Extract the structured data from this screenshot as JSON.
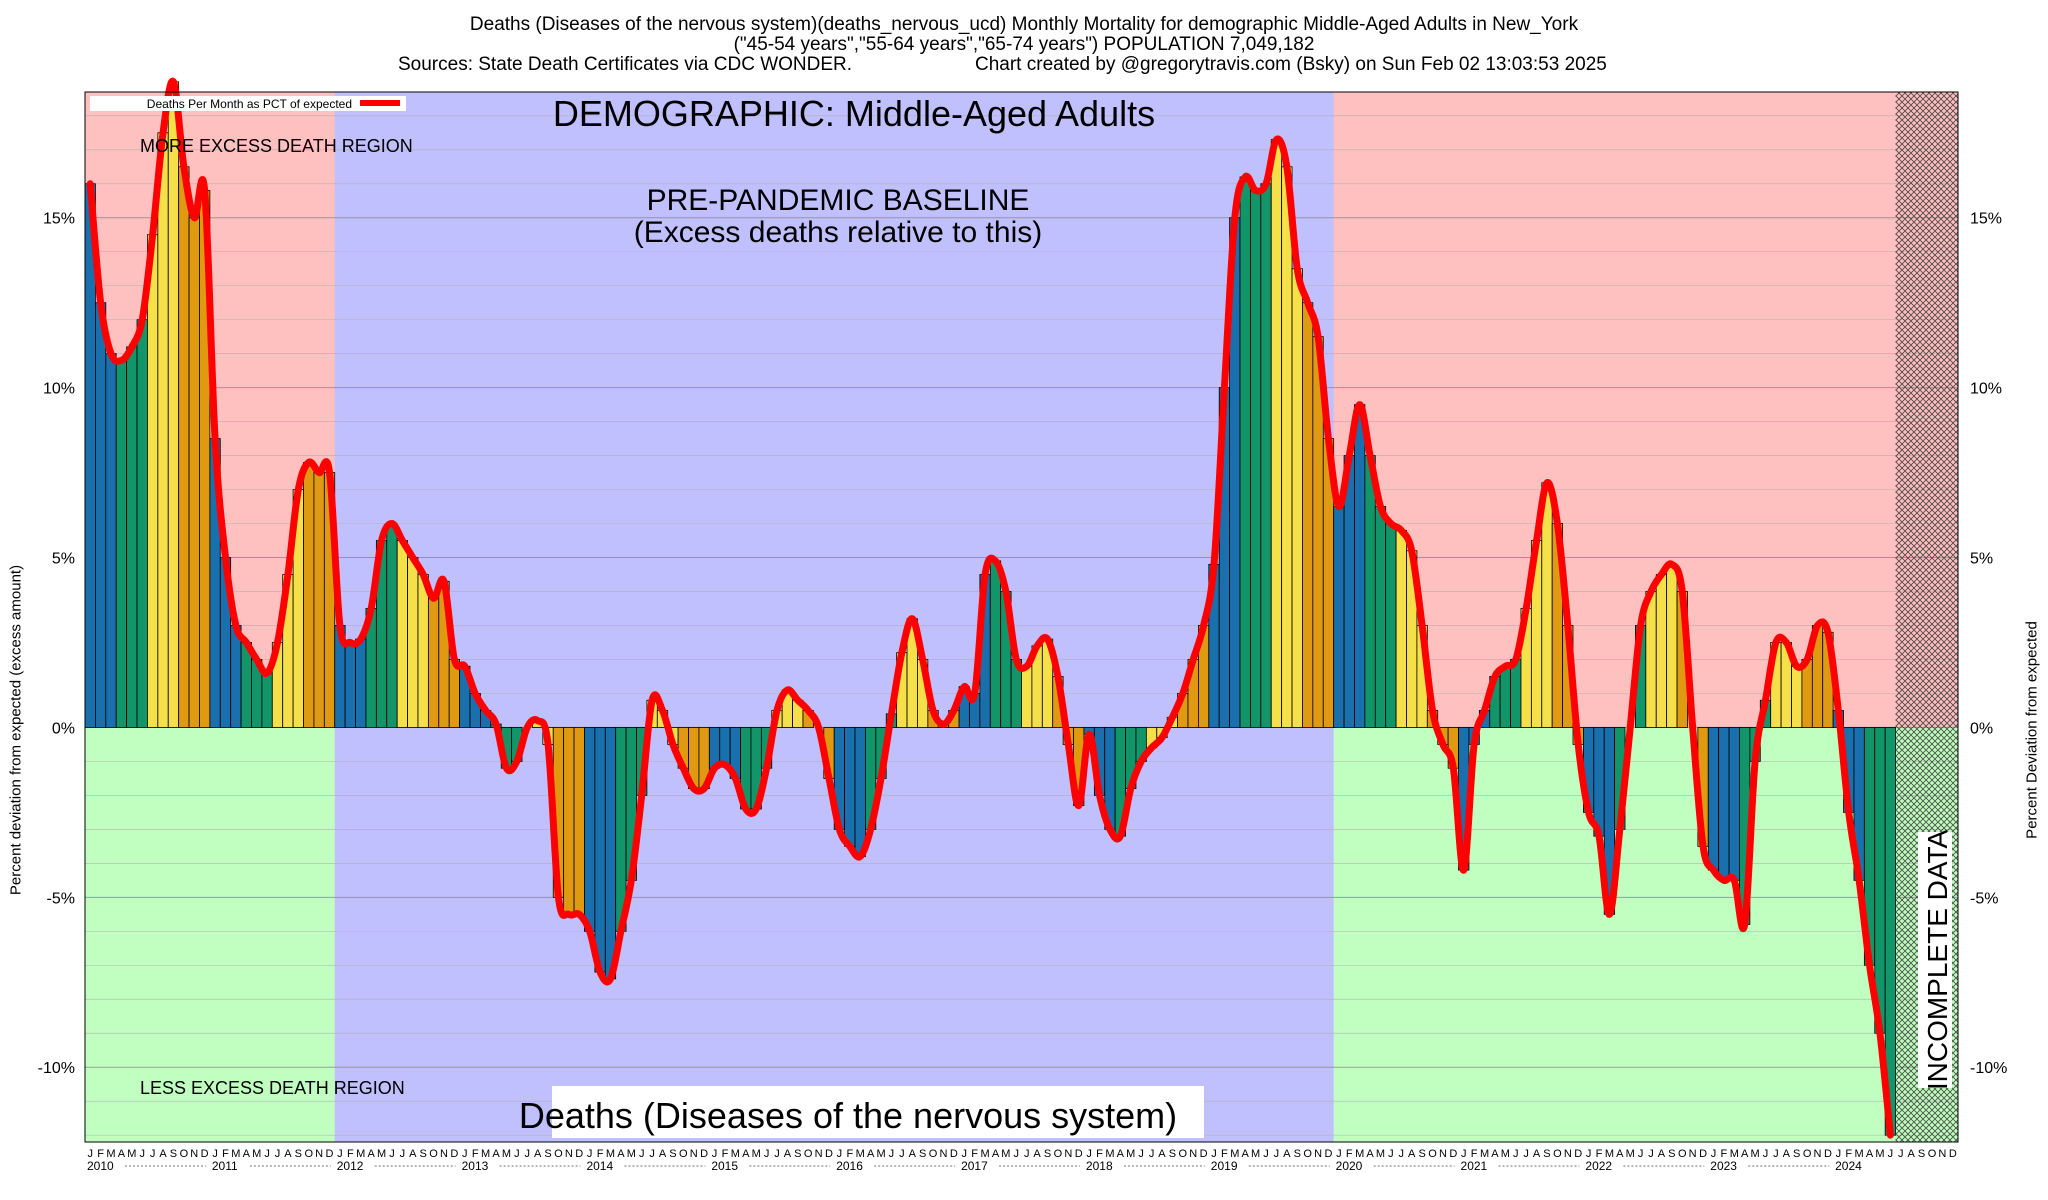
{
  "header": {
    "line1": "Deaths (Diseases of the nervous system)(deaths_nervous_ucd) Monthly Mortality for demographic Middle-Aged Adults in New_York",
    "line2": "(\"45-54 years\",\"55-64 years\",\"65-74 years\") POPULATION 7,049,182",
    "sources": "Sources: State Death Certificates via CDC WONDER.",
    "created": "Chart created by @gregorytravis.com (Bsky) on Sun Feb 02 13:03:53 2025"
  },
  "colors": {
    "excess_region": "#ffc0c0",
    "less_region": "#c0ffc0",
    "baseline_region": "#c0c0ff",
    "line": "#ff0000",
    "bar_winter": "#1a6fad",
    "bar_spring": "#13956a",
    "bar_summer": "#f5e04a",
    "bar_fall": "#e09a12"
  },
  "chart_data": {
    "type": "bar",
    "title": "DEMOGRAPHIC: Middle-Aged Adults",
    "subtitle": "Deaths (Diseases of the nervous system)",
    "ylabel": "Percent deviation from expected (excess amount)",
    "ylabel_right": "Percent Deviation from expected",
    "legend_label": "Deaths Per Month as PCT of expected",
    "legend_position": "top-left",
    "ylim": [
      -12.2,
      18.7
    ],
    "yticks": [
      15,
      10,
      5,
      0,
      -5,
      -10
    ],
    "ytick_labels": [
      "15%",
      "10%",
      "5%",
      "0%",
      "-5%",
      "-10%"
    ],
    "grid_minor_step": 1,
    "start": "2010-01",
    "month_letters": [
      "J",
      "F",
      "M",
      "A",
      "M",
      "J",
      "J",
      "A",
      "S",
      "O",
      "N",
      "D"
    ],
    "years": [
      "2010",
      "2011",
      "2012",
      "2013",
      "2014",
      "2015",
      "2016",
      "2017",
      "2018",
      "2019",
      "2020",
      "2021",
      "2022",
      "2023",
      "2024"
    ],
    "annotations": {
      "more": "MORE EXCESS DEATH REGION",
      "less": "LESS EXCESS DEATH REGION",
      "baseline_1": "PRE-PANDEMIC BASELINE",
      "baseline_2": "(Excess deaths relative to this)",
      "incomplete": "INCOMPLETE DATA"
    },
    "baseline_period": [
      "2012-01",
      "2019-12"
    ],
    "incomplete_from": "2024-07",
    "values": [
      16.0,
      12.5,
      11.0,
      10.8,
      11.2,
      12.0,
      14.5,
      17.5,
      19.0,
      16.5,
      15.0,
      15.8,
      8.5,
      5.0,
      3.0,
      2.5,
      2.0,
      1.6,
      2.5,
      4.5,
      7.0,
      7.8,
      7.5,
      7.5,
      3.0,
      2.5,
      2.6,
      3.5,
      5.5,
      6.0,
      5.5,
      5.0,
      4.5,
      3.8,
      4.3,
      2.0,
      1.8,
      1.0,
      0.5,
      0.1,
      -1.2,
      -1.0,
      0.0,
      0.2,
      -0.5,
      -5.0,
      -5.5,
      -5.5,
      -6.0,
      -7.2,
      -7.4,
      -6.0,
      -4.5,
      -2.0,
      0.8,
      0.5,
      -0.5,
      -1.2,
      -1.8,
      -1.8,
      -1.2,
      -1.1,
      -1.5,
      -2.4,
      -2.4,
      -1.2,
      0.5,
      1.1,
      0.8,
      0.5,
      0.0,
      -1.5,
      -3.0,
      -3.5,
      -3.8,
      -3.0,
      -1.5,
      0.4,
      2.2,
      3.2,
      2.0,
      0.5,
      0.1,
      0.5,
      1.2,
      1.0,
      4.5,
      4.9,
      4.0,
      2.0,
      1.8,
      2.4,
      2.6,
      1.5,
      -0.5,
      -2.3,
      -0.2,
      -2.0,
      -3.0,
      -3.2,
      -1.8,
      -1.0,
      -0.6,
      -0.3,
      0.3,
      1.0,
      2.0,
      3.0,
      4.8,
      10.0,
      15.0,
      16.2,
      15.8,
      16.0,
      17.3,
      16.5,
      13.5,
      12.5,
      11.5,
      8.5,
      6.5,
      8.0,
      9.5,
      8.0,
      6.5,
      6.0,
      5.8,
      5.2,
      3.0,
      0.5,
      -0.5,
      -1.2,
      -4.2,
      -0.5,
      0.5,
      1.5,
      1.8,
      2.0,
      3.5,
      5.5,
      7.2,
      6.0,
      3.0,
      -0.5,
      -2.5,
      -3.2,
      -5.5,
      -3.0,
      0.0,
      3.0,
      4.0,
      4.5,
      4.8,
      4.0,
      0.0,
      -3.5,
      -4.2,
      -4.5,
      -4.5,
      -5.8,
      -1.0,
      0.8,
      2.5,
      2.5,
      1.8,
      2.0,
      3.0,
      2.8,
      0.5,
      -2.5,
      -4.5,
      -7.0,
      -9.0,
      -12.0
    ]
  }
}
